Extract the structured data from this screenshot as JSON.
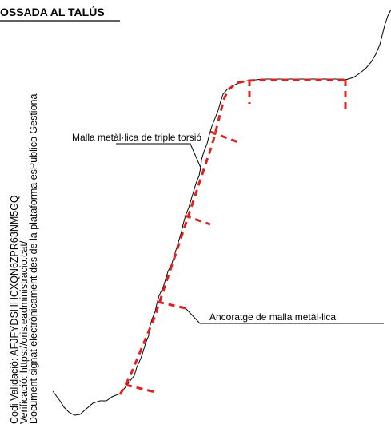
{
  "title": "OSSADA AL TALÚS",
  "labels": {
    "mesh": "Malla metàl·lica de triple torsió",
    "anchor": "Ancoratge de malla metàl·lica"
  },
  "stamp": {
    "line1": "Codi Validació: AFJFYDSHHCXQN6ZPR63NM5GQ",
    "line2": "Verificació: https://oris.eadministracio.cat/",
    "line3": "Document signat electrònicament des de la plataforma esPublico Gestiona"
  },
  "colors": {
    "terrain": "#000000",
    "mesh": "#e02020",
    "leader": "#000000"
  }
}
